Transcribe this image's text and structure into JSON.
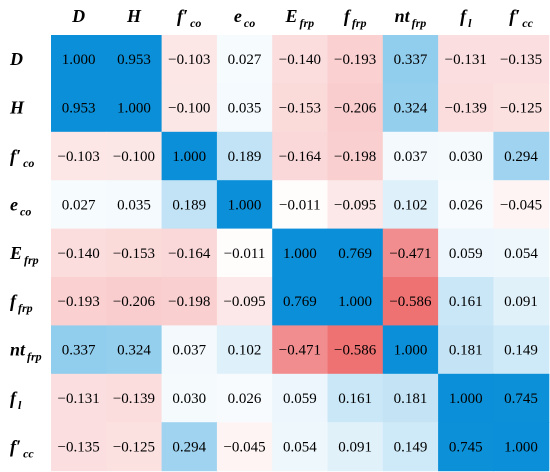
{
  "chart_data": {
    "type": "heatmap",
    "labels": [
      {
        "base": "D",
        "sub": ""
      },
      {
        "base": "H",
        "sub": ""
      },
      {
        "base": "f′",
        "sub": "co"
      },
      {
        "base": "e",
        "sub": "co"
      },
      {
        "base": "E",
        "sub": "frp"
      },
      {
        "base": "f",
        "sub": "frp"
      },
      {
        "base": "nt",
        "sub": "frp"
      },
      {
        "base": "f",
        "sub": "l"
      },
      {
        "base": "f′",
        "sub": "cc"
      }
    ],
    "matrix": [
      [
        1.0,
        0.953,
        -0.103,
        0.027,
        -0.14,
        -0.193,
        0.337,
        -0.131,
        -0.135
      ],
      [
        0.953,
        1.0,
        -0.1,
        0.035,
        -0.153,
        -0.206,
        0.324,
        -0.139,
        -0.125
      ],
      [
        -0.103,
        -0.1,
        1.0,
        0.189,
        -0.164,
        -0.198,
        0.037,
        0.03,
        0.294
      ],
      [
        0.027,
        0.035,
        0.189,
        1.0,
        -0.011,
        -0.095,
        0.102,
        0.026,
        -0.045
      ],
      [
        -0.14,
        -0.153,
        -0.164,
        -0.011,
        1.0,
        0.769,
        -0.471,
        0.059,
        0.054
      ],
      [
        -0.193,
        -0.206,
        -0.198,
        -0.095,
        0.769,
        1.0,
        -0.586,
        0.161,
        0.091
      ],
      [
        0.337,
        0.324,
        0.037,
        0.102,
        -0.471,
        -0.586,
        1.0,
        0.181,
        0.149
      ],
      [
        -0.131,
        -0.139,
        0.03,
        0.026,
        0.059,
        0.161,
        0.181,
        1.0,
        0.745
      ],
      [
        -0.135,
        -0.125,
        0.294,
        -0.045,
        0.054,
        0.091,
        0.149,
        0.745,
        1.0
      ]
    ],
    "display_values": [
      [
        "1.000",
        "0.953",
        "−0.103",
        "0.027",
        "−0.140",
        "−0.193",
        "0.337",
        "−0.131",
        "−0.135"
      ],
      [
        "0.953",
        "1.000",
        "−0.100",
        "0.035",
        "−0.153",
        "−0.206",
        "0.324",
        "−0.139",
        "−0.125"
      ],
      [
        "−0.103",
        "−0.100",
        "1.000",
        "0.189",
        "−0.164",
        "−0.198",
        "0.037",
        "0.030",
        "0.294"
      ],
      [
        "0.027",
        "0.035",
        "0.189",
        "1.000",
        "−0.011",
        "−0.095",
        "0.102",
        "0.026",
        "−0.045"
      ],
      [
        "−0.140",
        "−0.153",
        "−0.164",
        "−0.011",
        "1.000",
        "0.769",
        "−0.471",
        "0.059",
        "0.054"
      ],
      [
        "−0.193",
        "−0.206",
        "−0.198",
        "−0.095",
        "0.769",
        "1.000",
        "−0.586",
        "0.161",
        "0.091"
      ],
      [
        "0.337",
        "0.324",
        "0.037",
        "0.102",
        "−0.471",
        "−0.586",
        "1.000",
        "0.181",
        "0.149"
      ],
      [
        "−0.131",
        "−0.139",
        "0.030",
        "0.026",
        "0.059",
        "0.161",
        "0.181",
        "1.000",
        "0.745"
      ],
      [
        "−0.135",
        "−0.125",
        "0.294",
        "−0.045",
        "0.054",
        "0.091",
        "0.149",
        "0.745",
        "1.000"
      ]
    ],
    "color_scale": {
      "positive": "#0a8fd8",
      "negative": "#ea4a4c",
      "zero": "#ffffff"
    },
    "grid": false,
    "legend": "none"
  }
}
